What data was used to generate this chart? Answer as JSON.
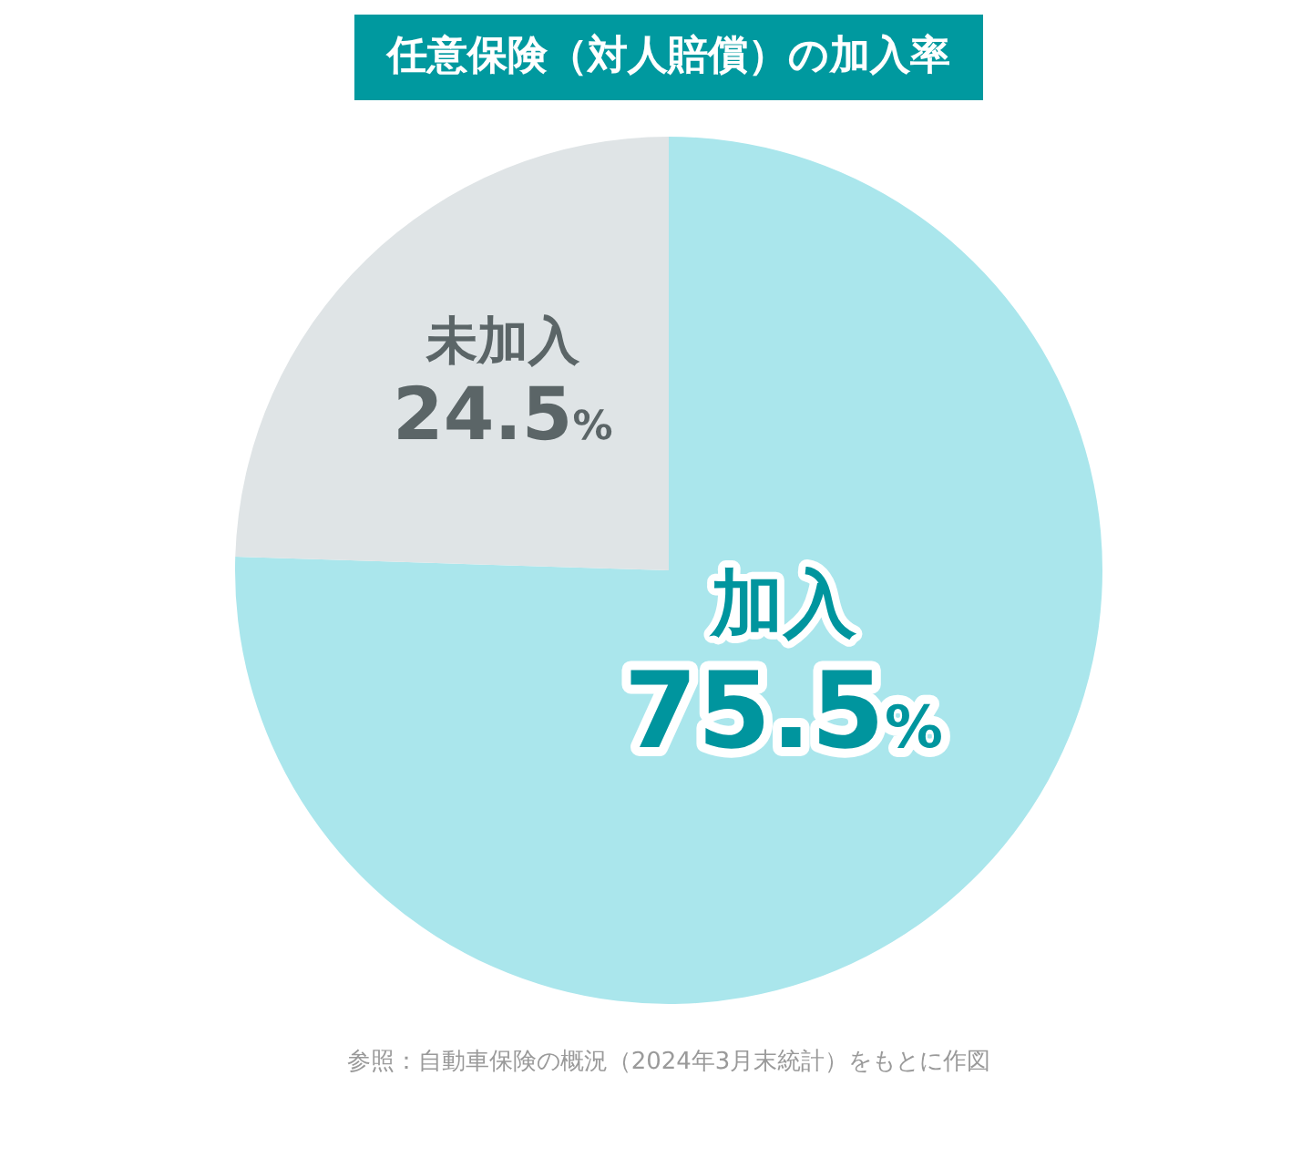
{
  "chart_data": {
    "type": "pie",
    "title": "任意保険（対人賠償）の加入率",
    "categories": [
      "加入",
      "未加入"
    ],
    "values": [
      75.5,
      24.5
    ],
    "colors": [
      "#aae6ec",
      "#dfe4e6"
    ],
    "value_labels": [
      "75.5%",
      "24.5%"
    ],
    "legend": false,
    "annotations": [
      "参照：自動車保険の概況（2024年3月末統計）をもとに作図"
    ]
  }
}
